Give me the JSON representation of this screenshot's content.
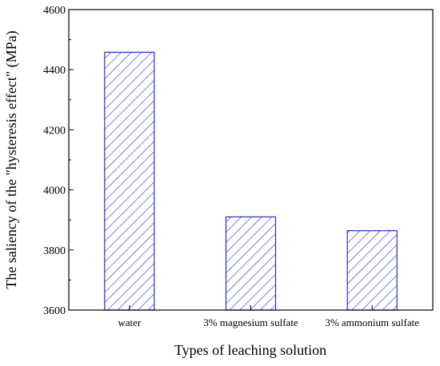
{
  "chart_data": {
    "type": "bar",
    "title": "",
    "xlabel": "Types of leaching solution",
    "ylabel": "The saliency of the \"hysteresis effect\" (MPa)",
    "categories": [
      "water",
      "3% magnesium sulfate",
      "3% ammonium sulfate"
    ],
    "values": [
      4458,
      3910,
      3864
    ],
    "ylim": [
      3600,
      4600
    ],
    "yticks": [
      3600,
      3800,
      4000,
      4200,
      4400,
      4600
    ],
    "ytick_labels": [
      "3600",
      "3800",
      "4000",
      "4200",
      "4400",
      "4600"
    ],
    "grid": false,
    "legend": "none",
    "bar_style": "hatched",
    "bar_color": "#2b2bd6"
  }
}
